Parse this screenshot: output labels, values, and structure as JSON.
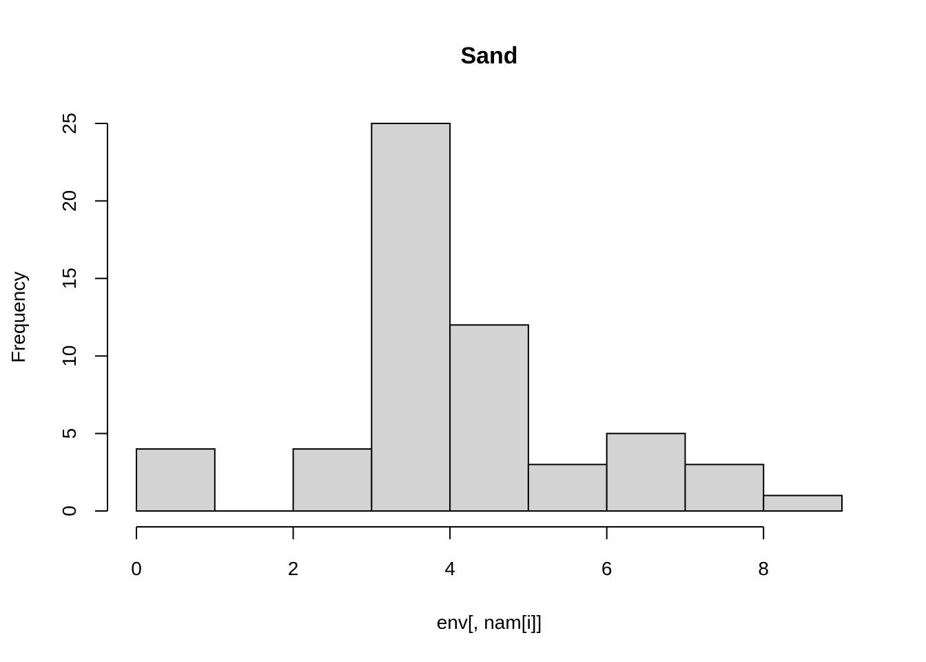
{
  "chart_data": {
    "type": "bar",
    "subtype": "histogram",
    "title": "Sand",
    "xlabel": "env[, nam[i]]",
    "ylabel": "Frequency",
    "bins": [
      {
        "from": 0,
        "to": 1,
        "count": 4
      },
      {
        "from": 1,
        "to": 2,
        "count": 0
      },
      {
        "from": 2,
        "to": 3,
        "count": 4
      },
      {
        "from": 3,
        "to": 4,
        "count": 25
      },
      {
        "from": 4,
        "to": 5,
        "count": 12
      },
      {
        "from": 5,
        "to": 6,
        "count": 3
      },
      {
        "from": 6,
        "to": 7,
        "count": 5
      },
      {
        "from": 7,
        "to": 8,
        "count": 3
      },
      {
        "from": 8,
        "to": 9,
        "count": 1
      }
    ],
    "xlim": [
      0,
      9
    ],
    "ylim": [
      0,
      25
    ],
    "x_ticks": [
      0,
      2,
      4,
      6,
      8
    ],
    "y_ticks": [
      0,
      5,
      10,
      15,
      20,
      25
    ],
    "x_tick_labels": [
      "0",
      "2",
      "4",
      "6",
      "8"
    ],
    "y_tick_labels": [
      "0",
      "5",
      "10",
      "15",
      "20",
      "25"
    ],
    "grid": false,
    "bar_color": "#d3d3d3",
    "edge_color": "#000000"
  }
}
